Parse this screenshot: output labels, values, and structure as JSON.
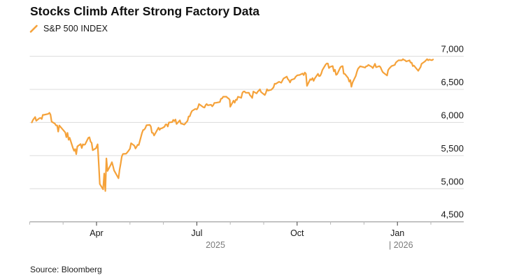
{
  "header": {
    "title": "Stocks Climb After Strong Factory Data"
  },
  "legend": {
    "label": "S&P 500 INDEX",
    "swatch_color": "#F5A23A"
  },
  "source": {
    "text": "Source: Bloomberg"
  },
  "colors": {
    "line": "#F5A23A",
    "grid": "#dcdcdc",
    "axis": "#8c8c8c",
    "tick_major": "#3d3d3d",
    "tick_minor": "#b5b5b5",
    "label_dark": "#161616",
    "label_gray": "#7a7a7a"
  },
  "chart_data": {
    "type": "line",
    "title": "Stocks Climb After Strong Factory Data",
    "xlabel": "",
    "ylabel": "",
    "grid": true,
    "legend_position": "top-left",
    "y_axis": {
      "min": 4500,
      "max": 7000,
      "step": 500,
      "side": "right",
      "tick_labels": [
        "7,000",
        "6,500",
        "6,000",
        "5,500",
        "5,000",
        "4,500"
      ]
    },
    "x_axis": {
      "start": "2025-02-01",
      "end": "2026-02-18",
      "month_ticks": [
        "Feb",
        "Mar",
        "Apr",
        "May",
        "Jun",
        "Jul",
        "Aug",
        "Sep",
        "Oct",
        "Nov",
        "Dec",
        "Jan",
        "Feb"
      ],
      "labeled_months": [
        "Apr",
        "Jul",
        "Oct",
        "Jan"
      ],
      "year_labels": [
        "2025",
        "| 2026"
      ]
    },
    "series": [
      {
        "name": "S&P 500 INDEX",
        "color": "#F5A23A",
        "points": [
          [
            "2025-02-03",
            6000
          ],
          [
            "2025-02-04",
            6038
          ],
          [
            "2025-02-05",
            6061
          ],
          [
            "2025-02-06",
            6083
          ],
          [
            "2025-02-07",
            6026
          ],
          [
            "2025-02-10",
            6066
          ],
          [
            "2025-02-11",
            6069
          ],
          [
            "2025-02-12",
            6052
          ],
          [
            "2025-02-13",
            6115
          ],
          [
            "2025-02-14",
            6115
          ],
          [
            "2025-02-18",
            6130
          ],
          [
            "2025-02-19",
            6147
          ],
          [
            "2025-02-20",
            6118
          ],
          [
            "2025-02-21",
            6013
          ],
          [
            "2025-02-24",
            5983
          ],
          [
            "2025-02-25",
            5955
          ],
          [
            "2025-02-26",
            5956
          ],
          [
            "2025-02-27",
            5862
          ],
          [
            "2025-02-28",
            5955
          ],
          [
            "2025-03-03",
            5850
          ],
          [
            "2025-03-04",
            5778
          ],
          [
            "2025-03-05",
            5843
          ],
          [
            "2025-03-06",
            5739
          ],
          [
            "2025-03-07",
            5770
          ],
          [
            "2025-03-10",
            5615
          ],
          [
            "2025-03-11",
            5572
          ],
          [
            "2025-03-12",
            5599
          ],
          [
            "2025-03-13",
            5522
          ],
          [
            "2025-03-14",
            5639
          ],
          [
            "2025-03-17",
            5675
          ],
          [
            "2025-03-18",
            5614
          ],
          [
            "2025-03-19",
            5671
          ],
          [
            "2025-03-20",
            5663
          ],
          [
            "2025-03-21",
            5668
          ],
          [
            "2025-03-24",
            5768
          ],
          [
            "2025-03-25",
            5777
          ],
          [
            "2025-03-26",
            5712
          ],
          [
            "2025-03-27",
            5693
          ],
          [
            "2025-03-28",
            5581
          ],
          [
            "2025-03-31",
            5612
          ],
          [
            "2025-04-01",
            5633
          ],
          [
            "2025-04-02",
            5671
          ],
          [
            "2025-04-03",
            5390
          ],
          [
            "2025-04-04",
            5070
          ],
          [
            "2025-04-07",
            4990
          ],
          [
            "2025-04-08",
            5230
          ],
          [
            "2025-04-09",
            4965
          ],
          [
            "2025-04-10",
            5457
          ],
          [
            "2025-04-11",
            5268
          ],
          [
            "2025-04-14",
            5363
          ],
          [
            "2025-04-15",
            5400
          ],
          [
            "2025-04-16",
            5340
          ],
          [
            "2025-04-17",
            5276
          ],
          [
            "2025-04-21",
            5158
          ],
          [
            "2025-04-22",
            5288
          ],
          [
            "2025-04-23",
            5376
          ],
          [
            "2025-04-24",
            5485
          ],
          [
            "2025-04-25",
            5525
          ],
          [
            "2025-04-28",
            5529
          ],
          [
            "2025-04-30",
            5569
          ],
          [
            "2025-05-01",
            5604
          ],
          [
            "2025-05-02",
            5687
          ],
          [
            "2025-05-05",
            5650
          ],
          [
            "2025-05-06",
            5607
          ],
          [
            "2025-05-07",
            5631
          ],
          [
            "2025-05-08",
            5664
          ],
          [
            "2025-05-09",
            5660
          ],
          [
            "2025-05-12",
            5844
          ],
          [
            "2025-05-13",
            5887
          ],
          [
            "2025-05-14",
            5893
          ],
          [
            "2025-05-15",
            5916
          ],
          [
            "2025-05-16",
            5958
          ],
          [
            "2025-05-19",
            5964
          ],
          [
            "2025-05-20",
            5941
          ],
          [
            "2025-05-21",
            5845
          ],
          [
            "2025-05-22",
            5842
          ],
          [
            "2025-05-23",
            5803
          ],
          [
            "2025-05-27",
            5922
          ],
          [
            "2025-05-28",
            5889
          ],
          [
            "2025-05-29",
            5912
          ],
          [
            "2025-05-30",
            5912
          ],
          [
            "2025-06-02",
            5936
          ],
          [
            "2025-06-03",
            5970
          ],
          [
            "2025-06-04",
            5971
          ],
          [
            "2025-06-05",
            5939
          ],
          [
            "2025-06-06",
            6000
          ],
          [
            "2025-06-09",
            6006
          ],
          [
            "2025-06-10",
            6039
          ],
          [
            "2025-06-11",
            6022
          ],
          [
            "2025-06-12",
            6045
          ],
          [
            "2025-06-13",
            5977
          ],
          [
            "2025-06-16",
            6033
          ],
          [
            "2025-06-17",
            5983
          ],
          [
            "2025-06-18",
            5981
          ],
          [
            "2025-06-20",
            5968
          ],
          [
            "2025-06-23",
            6025
          ],
          [
            "2025-06-24",
            6092
          ],
          [
            "2025-06-25",
            6092
          ],
          [
            "2025-06-26",
            6141
          ],
          [
            "2025-06-27",
            6173
          ],
          [
            "2025-06-30",
            6205
          ],
          [
            "2025-07-01",
            6198
          ],
          [
            "2025-07-02",
            6227
          ],
          [
            "2025-07-03",
            6279
          ],
          [
            "2025-07-07",
            6230
          ],
          [
            "2025-07-08",
            6226
          ],
          [
            "2025-07-09",
            6263
          ],
          [
            "2025-07-10",
            6280
          ],
          [
            "2025-07-11",
            6260
          ],
          [
            "2025-07-14",
            6268
          ],
          [
            "2025-07-15",
            6244
          ],
          [
            "2025-07-16",
            6264
          ],
          [
            "2025-07-17",
            6297
          ],
          [
            "2025-07-18",
            6297
          ],
          [
            "2025-07-21",
            6306
          ],
          [
            "2025-07-22",
            6310
          ],
          [
            "2025-07-23",
            6359
          ],
          [
            "2025-07-24",
            6363
          ],
          [
            "2025-07-25",
            6389
          ],
          [
            "2025-07-28",
            6390
          ],
          [
            "2025-07-29",
            6371
          ],
          [
            "2025-07-30",
            6363
          ],
          [
            "2025-07-31",
            6339
          ],
          [
            "2025-08-01",
            6238
          ],
          [
            "2025-08-04",
            6330
          ],
          [
            "2025-08-05",
            6299
          ],
          [
            "2025-08-06",
            6345
          ],
          [
            "2025-08-07",
            6340
          ],
          [
            "2025-08-08",
            6389
          ],
          [
            "2025-08-11",
            6373
          ],
          [
            "2025-08-12",
            6446
          ],
          [
            "2025-08-13",
            6466
          ],
          [
            "2025-08-14",
            6469
          ],
          [
            "2025-08-15",
            6450
          ],
          [
            "2025-08-18",
            6449
          ],
          [
            "2025-08-19",
            6411
          ],
          [
            "2025-08-20",
            6395
          ],
          [
            "2025-08-21",
            6370
          ],
          [
            "2025-08-22",
            6467
          ],
          [
            "2025-08-25",
            6439
          ],
          [
            "2025-08-26",
            6466
          ],
          [
            "2025-08-27",
            6481
          ],
          [
            "2025-08-28",
            6501
          ],
          [
            "2025-08-29",
            6460
          ],
          [
            "2025-09-02",
            6415
          ],
          [
            "2025-09-03",
            6448
          ],
          [
            "2025-09-04",
            6502
          ],
          [
            "2025-09-05",
            6481
          ],
          [
            "2025-09-08",
            6495
          ],
          [
            "2025-09-09",
            6513
          ],
          [
            "2025-09-10",
            6532
          ],
          [
            "2025-09-11",
            6587
          ],
          [
            "2025-09-12",
            6584
          ],
          [
            "2025-09-15",
            6615
          ],
          [
            "2025-09-16",
            6607
          ],
          [
            "2025-09-17",
            6600
          ],
          [
            "2025-09-18",
            6632
          ],
          [
            "2025-09-19",
            6664
          ],
          [
            "2025-09-22",
            6693
          ],
          [
            "2025-09-23",
            6656
          ],
          [
            "2025-09-24",
            6638
          ],
          [
            "2025-09-25",
            6605
          ],
          [
            "2025-09-26",
            6644
          ],
          [
            "2025-09-29",
            6661
          ],
          [
            "2025-09-30",
            6688
          ],
          [
            "2025-10-01",
            6711
          ],
          [
            "2025-10-02",
            6715
          ],
          [
            "2025-10-03",
            6716
          ],
          [
            "2025-10-06",
            6740
          ],
          [
            "2025-10-07",
            6715
          ],
          [
            "2025-10-08",
            6754
          ],
          [
            "2025-10-09",
            6735
          ],
          [
            "2025-10-10",
            6553
          ],
          [
            "2025-10-13",
            6654
          ],
          [
            "2025-10-14",
            6644
          ],
          [
            "2025-10-15",
            6671
          ],
          [
            "2025-10-16",
            6629
          ],
          [
            "2025-10-17",
            6664
          ],
          [
            "2025-10-20",
            6735
          ],
          [
            "2025-10-21",
            6699
          ],
          [
            "2025-10-22",
            6706
          ],
          [
            "2025-10-23",
            6738
          ],
          [
            "2025-10-24",
            6792
          ],
          [
            "2025-10-27",
            6875
          ],
          [
            "2025-10-28",
            6891
          ],
          [
            "2025-10-29",
            6890
          ],
          [
            "2025-10-30",
            6822
          ],
          [
            "2025-10-31",
            6840
          ],
          [
            "2025-11-03",
            6852
          ],
          [
            "2025-11-04",
            6772
          ],
          [
            "2025-11-05",
            6796
          ],
          [
            "2025-11-06",
            6720
          ],
          [
            "2025-11-07",
            6729
          ],
          [
            "2025-11-10",
            6833
          ],
          [
            "2025-11-11",
            6847
          ],
          [
            "2025-11-12",
            6851
          ],
          [
            "2025-11-13",
            6737
          ],
          [
            "2025-11-14",
            6734
          ],
          [
            "2025-11-17",
            6672
          ],
          [
            "2025-11-18",
            6617
          ],
          [
            "2025-11-19",
            6642
          ],
          [
            "2025-11-20",
            6539
          ],
          [
            "2025-11-21",
            6603
          ],
          [
            "2025-11-24",
            6705
          ],
          [
            "2025-11-25",
            6766
          ],
          [
            "2025-11-26",
            6812
          ],
          [
            "2025-11-28",
            6849
          ],
          [
            "2025-12-01",
            6834
          ],
          [
            "2025-12-02",
            6829
          ],
          [
            "2025-12-03",
            6849
          ],
          [
            "2025-12-04",
            6851
          ],
          [
            "2025-12-05",
            6870
          ],
          [
            "2025-12-08",
            6841
          ],
          [
            "2025-12-09",
            6822
          ],
          [
            "2025-12-10",
            6851
          ],
          [
            "2025-12-11",
            6886
          ],
          [
            "2025-12-12",
            6834
          ],
          [
            "2025-12-15",
            6851
          ],
          [
            "2025-12-16",
            6834
          ],
          [
            "2025-12-17",
            6798
          ],
          [
            "2025-12-18",
            6763
          ],
          [
            "2025-12-19",
            6748
          ],
          [
            "2025-12-22",
            6710
          ],
          [
            "2025-12-23",
            6790
          ],
          [
            "2025-12-24",
            6816
          ],
          [
            "2025-12-26",
            6851
          ],
          [
            "2025-12-29",
            6869
          ],
          [
            "2025-12-30",
            6904
          ],
          [
            "2025-12-31",
            6920
          ],
          [
            "2026-01-02",
            6940
          ],
          [
            "2026-01-05",
            6939
          ],
          [
            "2026-01-06",
            6957
          ],
          [
            "2026-01-07",
            6945
          ],
          [
            "2026-01-08",
            6939
          ],
          [
            "2026-01-09",
            6922
          ],
          [
            "2026-01-12",
            6939
          ],
          [
            "2026-01-13",
            6904
          ],
          [
            "2026-01-14",
            6904
          ],
          [
            "2026-01-15",
            6851
          ],
          [
            "2026-01-16",
            6860
          ],
          [
            "2026-01-20",
            6781
          ],
          [
            "2026-01-21",
            6810
          ],
          [
            "2026-01-22",
            6834
          ],
          [
            "2026-01-23",
            6886
          ],
          [
            "2026-01-26",
            6922
          ],
          [
            "2026-01-27",
            6939
          ],
          [
            "2026-01-28",
            6957
          ],
          [
            "2026-01-29",
            6939
          ],
          [
            "2026-01-30",
            6950
          ],
          [
            "2026-02-02",
            6940
          ],
          [
            "2026-02-03",
            6952
          ]
        ]
      }
    ]
  }
}
